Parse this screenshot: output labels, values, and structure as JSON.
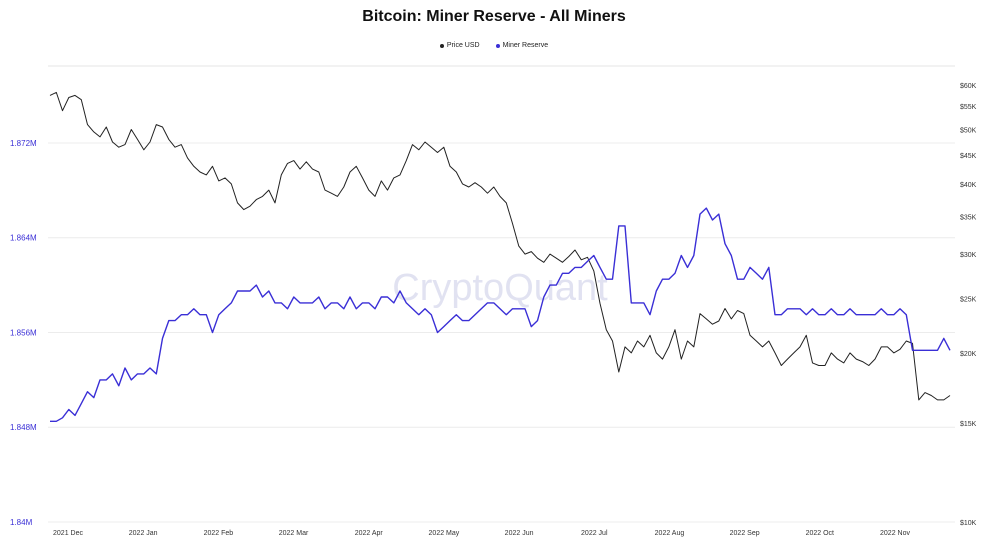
{
  "chart_data": {
    "type": "line",
    "title": "Bitcoin: Miner Reserve - All Miners",
    "watermark": "CryptoQuant",
    "legend": [
      {
        "name": "Price USD",
        "color": "#222222"
      },
      {
        "name": "Miner Reserve",
        "color": "#3a2fd6"
      }
    ],
    "x_ticks": [
      "2021 Dec",
      "2022 Jan",
      "2022 Feb",
      "2022 Mar",
      "2022 Apr",
      "2022 May",
      "2022 Jun",
      "2022 Jul",
      "2022 Aug",
      "2022 Sep",
      "2022 Oct",
      "2022 Nov"
    ],
    "left_axis": {
      "label_ticks": [
        "1.872M",
        "1.864M",
        "1.856M",
        "1.848M",
        "1.84M"
      ],
      "tick_values": [
        1.872,
        1.864,
        1.856,
        1.848,
        1.84
      ],
      "ylim": [
        1.84,
        1.8785
      ]
    },
    "right_axis": {
      "label_ticks": [
        "$60K",
        "$55K",
        "$50K",
        "$45K",
        "$40K",
        "$35K",
        "$30K",
        "$25K",
        "$20K",
        "$15K",
        "$10K"
      ],
      "tick_values": [
        60,
        55,
        50,
        45,
        40,
        35,
        30,
        25,
        20,
        15,
        10
      ],
      "scale": "log",
      "ylim": [
        10,
        60
      ]
    },
    "series": [
      {
        "name": "Price USD",
        "axis": "right",
        "color": "#222222",
        "values": [
          57.5,
          58.2,
          54.0,
          57.0,
          57.5,
          56.5,
          51.0,
          49.5,
          48.5,
          50.5,
          47.5,
          46.5,
          47.0,
          50.0,
          48.0,
          46.0,
          47.5,
          51.0,
          50.5,
          48.0,
          46.5,
          47.0,
          44.5,
          43.0,
          42.0,
          41.5,
          43.0,
          40.5,
          41.0,
          40.0,
          37.0,
          36.0,
          36.5,
          37.5,
          38.0,
          39.0,
          37.0,
          41.5,
          43.5,
          44.0,
          42.5,
          43.8,
          42.5,
          42.0,
          39.0,
          38.5,
          38.0,
          39.5,
          42.0,
          43.0,
          41.0,
          39.0,
          38.0,
          40.5,
          39.0,
          41.0,
          41.5,
          44.0,
          47.0,
          46.0,
          47.5,
          46.5,
          45.5,
          46.5,
          43.0,
          42.0,
          40.0,
          39.5,
          40.2,
          39.5,
          38.5,
          39.5,
          38.0,
          37.0,
          34.0,
          31.0,
          30.0,
          30.3,
          29.5,
          29.0,
          30.0,
          29.5,
          29.0,
          29.7,
          30.5,
          29.3,
          29.6,
          28.0,
          24.5,
          22.0,
          21.0,
          18.5,
          20.5,
          20.0,
          21.0,
          20.5,
          21.5,
          20.0,
          19.5,
          20.5,
          22.0,
          19.5,
          21.0,
          20.5,
          23.5,
          23.0,
          22.5,
          22.8,
          24.0,
          23.0,
          23.8,
          23.5,
          21.5,
          21.0,
          20.5,
          21.0,
          20.0,
          19.0,
          19.5,
          20.0,
          20.5,
          21.5,
          19.2,
          19.0,
          19.0,
          20.0,
          19.5,
          19.2,
          20.0,
          19.5,
          19.3,
          19.0,
          19.5,
          20.5,
          20.5,
          20.0,
          20.3,
          21.0,
          20.8,
          16.5,
          17.0,
          16.8,
          16.5,
          16.5,
          16.8
        ]
      },
      {
        "name": "Miner Reserve",
        "axis": "left",
        "color": "#3a2fd6",
        "values": [
          1.8485,
          1.8485,
          1.8488,
          1.8495,
          1.849,
          1.85,
          1.851,
          1.8505,
          1.852,
          1.852,
          1.8525,
          1.8515,
          1.853,
          1.852,
          1.8525,
          1.8525,
          1.853,
          1.8525,
          1.8555,
          1.857,
          1.857,
          1.8575,
          1.8575,
          1.858,
          1.8575,
          1.8575,
          1.856,
          1.8575,
          1.858,
          1.8585,
          1.8595,
          1.8595,
          1.8595,
          1.86,
          1.859,
          1.8595,
          1.8585,
          1.8585,
          1.858,
          1.859,
          1.8585,
          1.8585,
          1.8585,
          1.859,
          1.858,
          1.8585,
          1.8585,
          1.858,
          1.859,
          1.858,
          1.8585,
          1.8585,
          1.858,
          1.859,
          1.859,
          1.8585,
          1.8595,
          1.8585,
          1.858,
          1.8575,
          1.858,
          1.8575,
          1.856,
          1.8565,
          1.857,
          1.8575,
          1.857,
          1.857,
          1.8575,
          1.858,
          1.8585,
          1.8585,
          1.858,
          1.8575,
          1.858,
          1.858,
          1.858,
          1.8565,
          1.857,
          1.859,
          1.86,
          1.86,
          1.861,
          1.861,
          1.8615,
          1.8615,
          1.862,
          1.8625,
          1.8615,
          1.8605,
          1.8605,
          1.865,
          1.865,
          1.8585,
          1.8585,
          1.8585,
          1.8575,
          1.8595,
          1.8605,
          1.8605,
          1.861,
          1.8625,
          1.8615,
          1.8625,
          1.866,
          1.8665,
          1.8655,
          1.866,
          1.8635,
          1.8625,
          1.8605,
          1.8605,
          1.8615,
          1.861,
          1.8605,
          1.8615,
          1.8575,
          1.8575,
          1.858,
          1.858,
          1.858,
          1.8575,
          1.858,
          1.8575,
          1.8575,
          1.858,
          1.8575,
          1.8575,
          1.858,
          1.8575,
          1.8575,
          1.8575,
          1.8575,
          1.858,
          1.8575,
          1.8575,
          1.858,
          1.8575,
          1.8545,
          1.8545,
          1.8545,
          1.8545,
          1.8545,
          1.8555,
          1.8545
        ]
      }
    ]
  }
}
